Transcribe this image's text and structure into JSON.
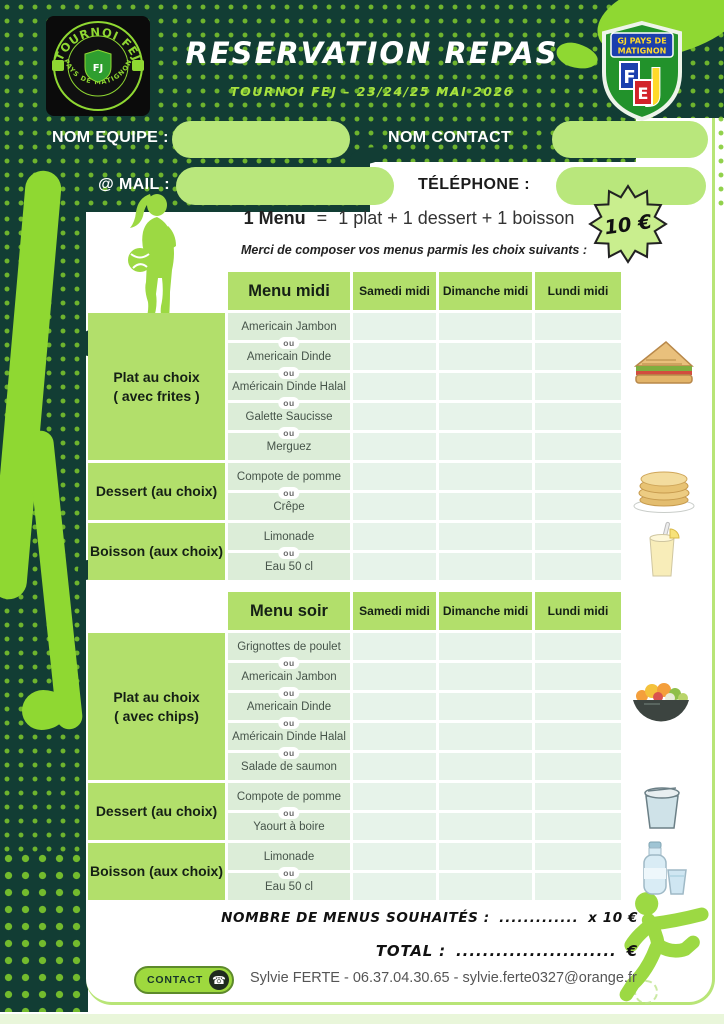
{
  "colors": {
    "dark": "#123d34",
    "lime": "#8fd832",
    "lime-soft": "#b2df6b",
    "pill": "#b9e77c",
    "item-bg": "#dcedd8",
    "day-bg": "#e7f3ea",
    "panel-border": "#b8e577"
  },
  "page": {
    "title": "RESERVATION REPAS",
    "subtitle": "TOURNOI FEJ – 23/24/25 MAI 2026"
  },
  "logos": {
    "left": {
      "arc_top": "TOURNOI FEJ",
      "arc_bottom": "PAYS DE MATIGNON",
      "center": "FJ"
    },
    "right": {
      "banner_line1": "GJ PAYS DE",
      "banner_line2": "MATIGNON",
      "letters": [
        "F",
        "E",
        "J"
      ]
    }
  },
  "form": {
    "fields": [
      {
        "label": "NOM EQUIPE :",
        "value": ""
      },
      {
        "label": "NOM CONTACT",
        "value": ""
      },
      {
        "label": "@ MAIL :",
        "value": ""
      },
      {
        "label": "TÉLÉPHONE :",
        "value": ""
      }
    ]
  },
  "menu": {
    "formula": "1 Menu",
    "eq": "=",
    "parts": "1 plat + 1 dessert + 1 boisson",
    "note": "Merci de composer vos menus parmis les choix suivants :"
  },
  "price": {
    "badge": "10 €"
  },
  "tables": [
    {
      "title": "Menu midi",
      "or_label": "ou",
      "day_headers": [
        "Samedi midi",
        "Dimanche midi",
        "Lundi midi"
      ],
      "sections": [
        {
          "label_lines": [
            "Plat au choix",
            "( avec frites )"
          ],
          "items": [
            "Americain Jambon",
            "Americain Dinde",
            "Américain Dinde Halal",
            "Galette Saucisse",
            "Merguez"
          ]
        },
        {
          "label_lines": [
            "Dessert (au choix)"
          ],
          "items": [
            "Compote de pomme",
            "Crêpe"
          ]
        },
        {
          "label_lines": [
            "Boisson (aux choix)"
          ],
          "items": [
            "Limonade",
            "Eau 50 cl"
          ]
        }
      ]
    },
    {
      "title": "Menu soir",
      "or_label": "ou",
      "day_headers": [
        "Samedi midi",
        "Dimanche midi",
        "Lundi midi"
      ],
      "sections": [
        {
          "label_lines": [
            "Plat au choix",
            "( avec  chips)"
          ],
          "items": [
            "Grignottes de poulet",
            "Americain Jambon",
            "Americain Dinde",
            "Américain Dinde Halal",
            "Salade de saumon"
          ]
        },
        {
          "label_lines": [
            "Dessert (au choix)"
          ],
          "items": [
            "Compote de pomme",
            "Yaourt à boire"
          ]
        },
        {
          "label_lines": [
            "Boisson (aux choix)"
          ],
          "items": [
            "Limonade",
            "Eau 50 cl"
          ]
        }
      ]
    }
  ],
  "totals": {
    "menus_label": "NOMBRE DE MENUS SOUHAITÉS :",
    "menus_dots": ".............",
    "menus_mult": "x 10 €",
    "total_label": "TOTAL :",
    "total_dots": "........................",
    "total_euro": "€"
  },
  "contact": {
    "button_label": "CONTACT",
    "info": "Sylvie FERTE - 06.37.04.30.65 - sylvie.ferte0327@orange.fr"
  },
  "food_icons": [
    "sandwich",
    "crepes",
    "lemonade",
    "salad",
    "yogurt",
    "water-bottle"
  ]
}
